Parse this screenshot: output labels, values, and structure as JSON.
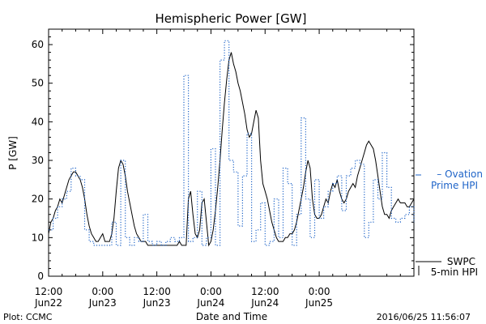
{
  "chart_data": {
    "type": "line",
    "title": "Hemispheric Power [GW]",
    "xlabel": "Date and Time",
    "ylabel": "P [GW]",
    "ylim": [
      0,
      64
    ],
    "xlim": [
      0,
      81
    ],
    "yticks": [
      0,
      10,
      20,
      30,
      40,
      50,
      60
    ],
    "xticks": [
      {
        "value": 0,
        "line1": "12:00",
        "line2": "Jun22"
      },
      {
        "value": 12,
        "line1": "0:00",
        "line2": "Jun23"
      },
      {
        "value": 24,
        "line1": "12:00",
        "line2": "Jun23"
      },
      {
        "value": 36,
        "line1": "0:00",
        "line2": "Jun24"
      },
      {
        "value": 48,
        "line1": "12:00",
        "line2": "Jun24"
      },
      {
        "value": 60,
        "line1": "0:00",
        "line2": "Jun25"
      }
    ],
    "x_units": "hours since 12:00 Jun22",
    "legend_placement": "right",
    "grid": false,
    "series": [
      {
        "name": "SWPC 5-min HPI",
        "color": "#000000",
        "style": "solid",
        "x": [
          0,
          0.5,
          1,
          1.5,
          2,
          2.5,
          3,
          3.5,
          4,
          4.5,
          5,
          5.5,
          6,
          6.5,
          7,
          7.5,
          8,
          8.5,
          9,
          9.5,
          10,
          10.5,
          11,
          11.5,
          12,
          12.5,
          13,
          13.5,
          14,
          14.5,
          15,
          15.5,
          16,
          16.5,
          17,
          17.5,
          18,
          18.5,
          19,
          19.5,
          20,
          20.5,
          21,
          21.5,
          22,
          22.5,
          23,
          23.5,
          24,
          24.5,
          25,
          25.5,
          26,
          26.5,
          27,
          27.5,
          28,
          28.5,
          29,
          29.5,
          30,
          30.5,
          31,
          31.5,
          32,
          32.5,
          33,
          33.5,
          34,
          34.5,
          35,
          35.5,
          36,
          36.5,
          37,
          37.5,
          38,
          38.5,
          39,
          39.5,
          40,
          40.5,
          41,
          41.5,
          42,
          42.5,
          43,
          43.5,
          44,
          44.5,
          45,
          45.5,
          46,
          46.5,
          47,
          47.5,
          48,
          48.5,
          49,
          49.5,
          50,
          50.5,
          51,
          51.5,
          52,
          52.5,
          53,
          53.5,
          54,
          54.5,
          55,
          55.5,
          56,
          56.5,
          57,
          57.5,
          58,
          58.5,
          59,
          59.5,
          60,
          60.5,
          61,
          61.5,
          62,
          62.5,
          63,
          63.5,
          64,
          64.5,
          65,
          65.5,
          66,
          66.5,
          67,
          67.5,
          68,
          68.5,
          69,
          69.5,
          70,
          70.5,
          71,
          71.5,
          72,
          72.5,
          73,
          73.5,
          74,
          74.5,
          75,
          75.5,
          76,
          76.5,
          77,
          77.5,
          78,
          78.5,
          79,
          79.5,
          80,
          80.5,
          81
        ],
        "y": [
          11,
          14,
          15,
          17,
          18,
          20,
          19,
          21,
          23,
          25,
          26,
          27,
          27,
          26,
          25,
          23,
          20,
          16,
          13,
          11,
          10,
          9,
          9,
          10,
          11,
          9,
          9,
          9,
          11,
          15,
          22,
          28,
          30,
          29,
          26,
          22,
          19,
          16,
          13,
          11,
          10,
          9,
          9,
          9,
          8,
          8,
          8,
          8,
          8,
          8,
          8,
          8,
          8,
          8,
          8,
          8,
          8,
          8,
          9,
          8,
          8,
          8,
          20,
          22,
          16,
          11,
          10,
          12,
          19,
          20,
          14,
          8,
          9,
          12,
          17,
          23,
          30,
          38,
          45,
          51,
          56,
          58,
          55,
          53,
          50,
          48,
          45,
          42,
          38,
          36,
          37,
          40,
          43,
          41,
          30,
          24,
          22,
          20,
          17,
          14,
          12,
          10,
          9,
          9,
          9,
          10,
          10,
          11,
          11,
          12,
          14,
          17,
          20,
          23,
          27,
          30,
          28,
          20,
          16,
          15,
          15,
          16,
          18,
          20,
          19,
          22,
          24,
          23,
          25,
          22,
          20,
          19,
          20,
          22,
          23,
          24,
          23,
          26,
          28,
          30,
          32,
          34,
          35,
          34,
          33,
          30,
          26,
          22,
          18,
          16,
          16,
          15,
          17,
          18,
          19,
          20,
          19,
          19,
          19,
          18,
          18,
          19,
          20
        ]
      },
      {
        "name": "Ovation Prime HPI",
        "color": "#1f64c8",
        "style": "dotted",
        "x": [
          0,
          1,
          2,
          3,
          4,
          5,
          6,
          7,
          8,
          9,
          10,
          11,
          12,
          13,
          14,
          15,
          16,
          17,
          18,
          19,
          20,
          21,
          22,
          23,
          24,
          25,
          26,
          27,
          28,
          29,
          30,
          31,
          32,
          33,
          34,
          35,
          36,
          37,
          38,
          39,
          40,
          41,
          42,
          43,
          44,
          45,
          46,
          47,
          48,
          49,
          50,
          51,
          52,
          53,
          54,
          55,
          56,
          57,
          58,
          59,
          60,
          61,
          62,
          63,
          64,
          65,
          66,
          67,
          68,
          69,
          70,
          71,
          72,
          73,
          74,
          75,
          76,
          77,
          78,
          79,
          80,
          81
        ],
        "y": [
          12,
          15,
          18,
          20,
          22,
          28,
          26,
          25,
          12,
          9,
          8,
          8,
          8,
          8,
          14,
          8,
          30,
          10,
          8,
          10,
          9,
          16,
          9,
          8,
          9,
          8,
          9,
          10,
          9,
          10,
          52,
          9,
          10,
          22,
          8,
          10,
          33,
          8,
          56,
          61,
          30,
          27,
          13,
          26,
          37,
          9,
          12,
          19,
          8,
          9,
          20,
          10,
          28,
          24,
          8,
          16,
          41,
          20,
          10,
          25,
          15,
          18,
          22,
          24,
          26,
          17,
          26,
          28,
          30,
          29,
          10,
          14,
          25,
          20,
          32,
          23,
          15,
          14,
          15,
          16,
          18,
          14
        ]
      }
    ],
    "legend": [
      {
        "series": "Ovation Prime HPI",
        "line1": "Ovation",
        "line2": "Prime HPI",
        "dash": "– "
      },
      {
        "series": "SWPC 5-min HPI",
        "line1": "SWPC",
        "line2": "5-min HPI"
      }
    ]
  },
  "footer": {
    "left": "Plot: CCMC",
    "right": "2016/06/25 11:56:07"
  }
}
